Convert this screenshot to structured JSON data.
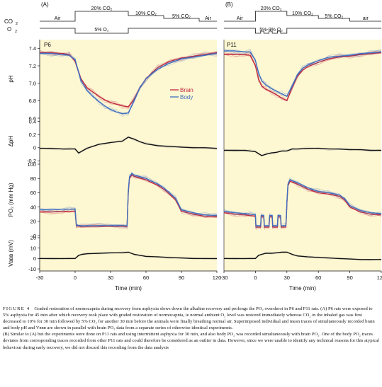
{
  "figure": {
    "panel_labels": [
      "(A)",
      "(B)"
    ],
    "protocol": {
      "co2_label": "CO",
      "co2_sub": "2",
      "o2_label": "O",
      "o2_sub": "2",
      "A_top": [
        "Air",
        "20% CO₂",
        "10% CO₂",
        "5% CO₂",
        "Air"
      ],
      "A_bottom": "5% O₂",
      "B_top": [
        "Air",
        "20% CO₂",
        "10% CO₂",
        "5% CO₂",
        "air"
      ],
      "B_bottom": "5%-9% O₂"
    },
    "subplot_titles": [
      "P6",
      "P11"
    ],
    "ylabels": {
      "ph": "pH",
      "dph": "ΔpH",
      "po2": "PO₂ (mm Hg)",
      "vbbb": "Vʙʙʙ (mV)"
    },
    "xlabel": "Time (min)",
    "legend": {
      "brain": "Brain",
      "body": "Body"
    },
    "colors": {
      "background": "#fdf7d2",
      "brain": "#c0283e",
      "body": "#3f6fc0",
      "mean": "#111111",
      "gray": "#a9a9a9"
    }
  },
  "chart_data": [
    {
      "panel": "A",
      "type": "line",
      "subplot": "pH",
      "ylim": [
        6.6,
        7.5
      ],
      "yticks": [
        6.6,
        6.8,
        7.0,
        7.2,
        7.4
      ],
      "xlim": [
        -30,
        120
      ],
      "xticks": [
        -30,
        0,
        30,
        60,
        90,
        120
      ],
      "series": [
        {
          "name": "Brain",
          "x": [
            -30,
            -20,
            -10,
            -5,
            0,
            5,
            10,
            15,
            20,
            25,
            30,
            35,
            40,
            45,
            50,
            55,
            60,
            65,
            70,
            80,
            90,
            100,
            110,
            120
          ],
          "y": [
            7.35,
            7.35,
            7.34,
            7.33,
            7.25,
            7.05,
            6.95,
            6.9,
            6.85,
            6.81,
            6.78,
            6.76,
            6.74,
            6.73,
            6.82,
            6.95,
            7.05,
            7.12,
            7.18,
            7.25,
            7.29,
            7.31,
            7.33,
            7.35
          ]
        },
        {
          "name": "Body",
          "x": [
            -30,
            -20,
            -10,
            -5,
            0,
            5,
            10,
            15,
            20,
            25,
            30,
            35,
            40,
            45,
            50,
            55,
            60,
            65,
            70,
            80,
            90,
            100,
            110,
            120
          ],
          "y": [
            7.34,
            7.34,
            7.33,
            7.32,
            7.27,
            7.03,
            6.92,
            6.85,
            6.79,
            6.74,
            6.7,
            6.67,
            6.65,
            6.66,
            6.8,
            6.95,
            7.05,
            7.11,
            7.16,
            7.23,
            7.28,
            7.3,
            7.32,
            7.34
          ]
        }
      ]
    },
    {
      "panel": "B",
      "type": "line",
      "subplot": "pH",
      "ylim": [
        6.6,
        7.5
      ],
      "xlim": [
        -30,
        120
      ],
      "series": [
        {
          "name": "Brain",
          "x": [
            -30,
            -20,
            -10,
            -5,
            0,
            3,
            6,
            10,
            15,
            20,
            25,
            30,
            35,
            40,
            45,
            50,
            60,
            70,
            80,
            90,
            100,
            110,
            120
          ],
          "y": [
            7.33,
            7.33,
            7.33,
            7.32,
            7.2,
            7.05,
            6.97,
            6.93,
            6.9,
            6.87,
            6.83,
            6.8,
            6.95,
            7.08,
            7.15,
            7.19,
            7.24,
            7.28,
            7.3,
            7.31,
            7.33,
            7.34,
            7.35
          ]
        },
        {
          "name": "Body",
          "x": [
            -30,
            -20,
            -10,
            -5,
            0,
            3,
            6,
            10,
            15,
            20,
            25,
            30,
            35,
            40,
            45,
            50,
            60,
            70,
            80,
            90,
            100,
            110,
            120
          ],
          "y": [
            7.37,
            7.37,
            7.36,
            7.36,
            7.26,
            7.12,
            7.03,
            6.98,
            6.94,
            6.91,
            6.88,
            6.85,
            6.97,
            7.1,
            7.17,
            7.21,
            7.26,
            7.3,
            7.31,
            7.32,
            7.34,
            7.35,
            7.36
          ]
        }
      ]
    },
    {
      "panel": "A",
      "type": "line",
      "subplot": "ΔpH",
      "ylim": [
        -0.25,
        0.45
      ],
      "yticks": [
        -0.2,
        0,
        0.2,
        0.4
      ],
      "series": [
        {
          "name": "mean",
          "x": [
            -30,
            -20,
            -10,
            -5,
            0,
            3,
            6,
            10,
            20,
            30,
            40,
            45,
            50,
            55,
            60,
            70,
            80,
            90,
            100,
            110,
            120
          ],
          "y": [
            -0.01,
            -0.01,
            -0.02,
            -0.02,
            -0.02,
            -0.08,
            -0.05,
            -0.01,
            0.05,
            0.08,
            0.1,
            0.16,
            0.13,
            0.09,
            0.06,
            0.03,
            0.02,
            0.01,
            0.0,
            0.0,
            -0.01
          ]
        }
      ]
    },
    {
      "panel": "B",
      "type": "line",
      "subplot": "ΔpH",
      "ylim": [
        -0.25,
        0.45
      ],
      "series": [
        {
          "name": "mean",
          "x": [
            -30,
            -20,
            -10,
            -5,
            0,
            3,
            6,
            10,
            15,
            20,
            25,
            30,
            35,
            40,
            50,
            60,
            70,
            80,
            90,
            100,
            110,
            120
          ],
          "y": [
            -0.04,
            -0.04,
            -0.04,
            -0.05,
            -0.06,
            -0.09,
            -0.12,
            -0.1,
            -0.08,
            -0.07,
            -0.05,
            -0.05,
            -0.02,
            -0.02,
            -0.01,
            -0.01,
            -0.02,
            -0.02,
            -0.03,
            -0.03,
            -0.04,
            -0.04
          ]
        }
      ]
    },
    {
      "panel": "A",
      "type": "line",
      "subplot": "PO₂",
      "ylim": [
        0,
        100
      ],
      "yticks": [
        0,
        20,
        40,
        60,
        80,
        100
      ],
      "series": [
        {
          "name": "Brain",
          "x": [
            -30,
            -20,
            -10,
            -5,
            0,
            1,
            5,
            20,
            40,
            44,
            45,
            46,
            48,
            50,
            60,
            70,
            75,
            80,
            85,
            90,
            100,
            110,
            120
          ],
          "y": [
            33,
            33,
            34,
            34,
            34,
            14,
            13,
            13,
            13,
            13,
            60,
            80,
            85,
            83,
            78,
            70,
            65,
            58,
            50,
            34,
            30,
            27,
            26
          ]
        },
        {
          "name": "Body",
          "x": [
            -30,
            -20,
            -10,
            -5,
            0,
            1,
            5,
            20,
            40,
            44,
            45,
            46,
            48,
            50,
            60,
            70,
            75,
            80,
            85,
            90,
            100,
            110,
            120
          ],
          "y": [
            36,
            36,
            37,
            37,
            37,
            15,
            14,
            14,
            14,
            14,
            62,
            82,
            87,
            85,
            80,
            72,
            67,
            60,
            52,
            36,
            32,
            29,
            28
          ]
        }
      ]
    },
    {
      "panel": "B",
      "type": "line",
      "subplot": "PO₂",
      "ylim": [
        0,
        100
      ],
      "series": [
        {
          "name": "Brain",
          "x": [
            -30,
            -20,
            -10,
            -5,
            0,
            0.5,
            5,
            5.5,
            8,
            8.5,
            13,
            13.5,
            16,
            16.5,
            21,
            21.5,
            24,
            24.5,
            29,
            29.5,
            30,
            31,
            33,
            40,
            50,
            60,
            70,
            80,
            85,
            90,
            100,
            110,
            120
          ],
          "y": [
            32,
            30,
            29,
            28,
            27,
            12,
            12,
            26,
            26,
            12,
            12,
            26,
            26,
            12,
            12,
            26,
            26,
            12,
            12,
            26,
            45,
            70,
            76,
            72,
            65,
            60,
            58,
            55,
            50,
            40,
            33,
            30,
            29
          ]
        },
        {
          "name": "Body",
          "x": [
            -30,
            -20,
            -10,
            -5,
            0,
            0.5,
            5,
            5.5,
            8,
            8.5,
            13,
            13.5,
            16,
            16.5,
            21,
            21.5,
            24,
            24.5,
            29,
            29.5,
            30,
            31,
            33,
            40,
            50,
            60,
            70,
            80,
            85,
            90,
            100,
            110,
            120
          ],
          "y": [
            34,
            32,
            31,
            30,
            29,
            14,
            14,
            28,
            28,
            14,
            14,
            28,
            28,
            14,
            14,
            28,
            28,
            14,
            14,
            28,
            47,
            72,
            78,
            74,
            67,
            62,
            60,
            57,
            52,
            42,
            35,
            32,
            31
          ]
        }
      ]
    },
    {
      "panel": "A",
      "type": "line",
      "subplot": "Vʙʙʙ",
      "ylim": [
        -12,
        22
      ],
      "yticks": [
        -10,
        0,
        10,
        20
      ],
      "series": [
        {
          "name": "mean",
          "x": [
            -30,
            -20,
            -10,
            -5,
            0,
            3,
            6,
            10,
            20,
            30,
            40,
            45,
            50,
            55,
            60,
            70,
            80,
            90,
            100,
            110,
            120
          ],
          "y": [
            0,
            0,
            0,
            0,
            0,
            3,
            4,
            4.5,
            5,
            5.5,
            5.5,
            6,
            4,
            3,
            2,
            1.5,
            1,
            0.5,
            0,
            0,
            0
          ]
        }
      ]
    },
    {
      "panel": "B",
      "type": "line",
      "subplot": "Vʙʙʙ",
      "ylim": [
        -12,
        22
      ],
      "series": [
        {
          "name": "mean",
          "x": [
            -30,
            -20,
            -10,
            -5,
            0,
            3,
            6,
            10,
            15,
            20,
            25,
            30,
            35,
            40,
            50,
            60,
            70,
            80,
            90,
            100,
            110,
            120
          ],
          "y": [
            0,
            0,
            0,
            0,
            0,
            3,
            4,
            5,
            5,
            5.5,
            6,
            6,
            4,
            2.5,
            1.5,
            1,
            0.5,
            0,
            -0.5,
            -1,
            -1,
            -1
          ]
        }
      ]
    }
  ],
  "caption": {
    "label": "FIGURE 4",
    "text": "Graded restoration of normocapnia during recovery from asphyxia slows down the alkaline recovery and prolongs the PO₂ overshoot in P6 and P11 rats. (A) P6 rats were exposed to 5% asphyxia for 45 min after which recovery took place with graded restoration of normocapnia, ie normal ambient O₂ level was restored immediately whereas CO₂ in the inhaled gas was first decreased to 10% for 30 min followed by 5% CO₂ for another 30 min before the animals were finally breathing normal air. Superimposed individual and mean traces of simultaneously recorded brain and body pH and Vʙʙʙ are shown in parallel with brain PO₂ data from a separate series of otherwise identical experiments.",
    "text2": "(B) Similar to (A) but the experiments were done on P11 rats and using intermittent asphyxia for 30 min, and also body PO₂ was recorded simultaneously with brain PO₂. One of the body PO₂ traces deviates from corresponding traces recorded from other P11 rats and could therefore be considered as an outlier in data. However, since we were unable to identify any technical reasons for this atypical behaviour during early recovery, we did not discard this recording from the data analysis"
  }
}
